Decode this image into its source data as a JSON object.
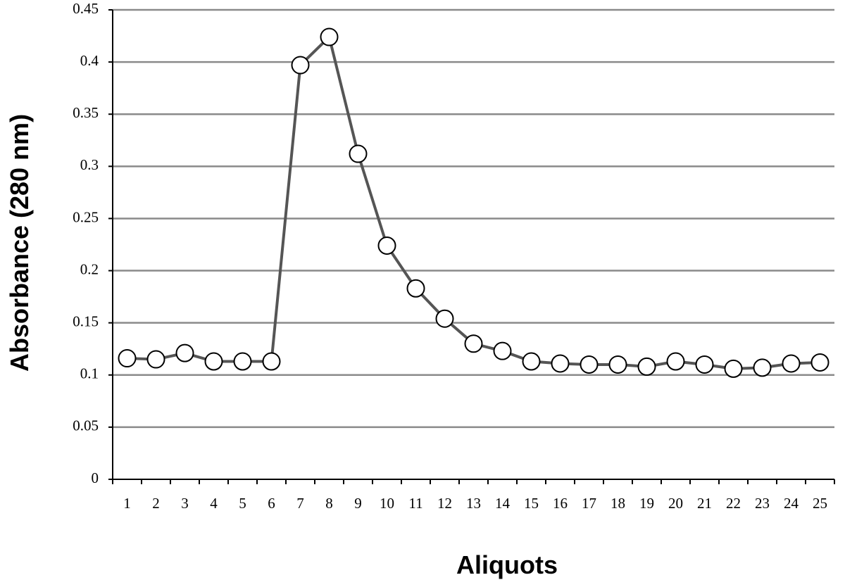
{
  "chart_data": {
    "type": "line",
    "x_label": "Aliquots",
    "y_label": "Absorbance (280 nm)",
    "categories": [
      "1",
      "2",
      "3",
      "4",
      "5",
      "6",
      "7",
      "8",
      "9",
      "10",
      "11",
      "12",
      "13",
      "14",
      "15",
      "16",
      "17",
      "18",
      "19",
      "20",
      "21",
      "22",
      "23",
      "24",
      "25"
    ],
    "series": [
      {
        "color": "#555555",
        "values": [
          0.116,
          0.115,
          0.121,
          0.113,
          0.113,
          0.113,
          0.397,
          0.424,
          0.312,
          0.224,
          0.183,
          0.154,
          0.13,
          0.123,
          0.113,
          0.111,
          0.11,
          0.11,
          0.108,
          0.113,
          0.11,
          0.106,
          0.107,
          0.111,
          0.112
        ]
      }
    ],
    "ylim": [
      0,
      0.45
    ],
    "yticks": [
      0,
      0.05,
      0.1,
      0.15,
      0.2,
      0.25,
      0.3,
      0.35,
      0.4,
      0.45
    ],
    "grid": true
  }
}
